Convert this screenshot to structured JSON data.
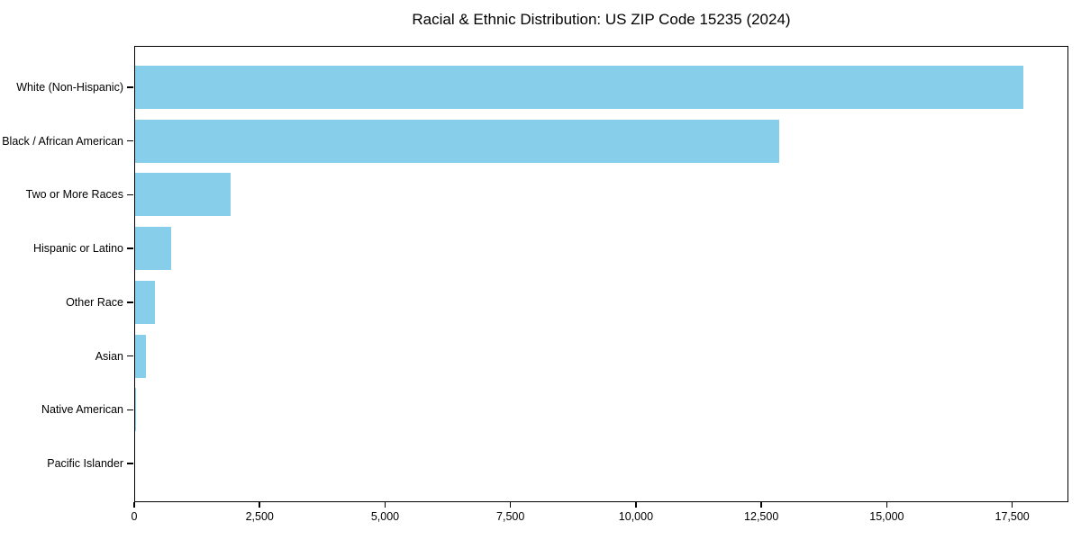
{
  "figure": {
    "background": "#ffffff",
    "text_color": "#000000",
    "frame_color": "#000000"
  },
  "chart_data": {
    "type": "bar",
    "orientation": "horizontal",
    "title": "Racial & Ethnic Distribution: US ZIP Code 15235 (2024)",
    "categories": [
      "White (Non-Hispanic)",
      "Black / African American",
      "Two or More Races",
      "Hispanic or Latino",
      "Other Race",
      "Asian",
      "Native American",
      "Pacific Islander"
    ],
    "values": [
      17730,
      12860,
      1920,
      740,
      410,
      230,
      30,
      10
    ],
    "bar_color": "#87CEEB",
    "xlabel": "",
    "ylabel": "",
    "xlim": [
      0,
      18620
    ],
    "xticks": [
      0,
      2500,
      5000,
      7500,
      10000,
      12500,
      15000,
      17500
    ],
    "xtick_labels": [
      "0",
      "2,500",
      "5,000",
      "7,500",
      "10,000",
      "12,500",
      "15,000",
      "17,500"
    ],
    "grid": false,
    "legend": null,
    "categories_order": "top-to-bottom descending value"
  }
}
